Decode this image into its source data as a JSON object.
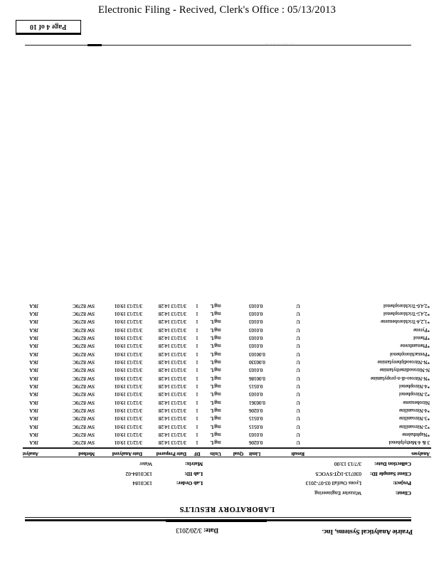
{
  "filing_header": "Electronic Filing - Recived, Clerk's Office :  05/13/2013",
  "page_stamp": "Page 4 of 10",
  "document": {
    "lab_name": "Prairie Analytical Systems, Inc.",
    "date_label": "Date:",
    "date_value": "3/20/2013",
    "title": "LABORATORY RESULTS",
    "info": {
      "client_label": "Client:",
      "client": "Winzeler Engineering",
      "project_label": "Project:",
      "project": "Lyons Outfall 03-07-2013",
      "sample_id_label": "Client Sample ID:",
      "sample_id": "030713-1QT-SVOCS",
      "collection_label": "Collection Date:",
      "collection": "3/7/13 13:00",
      "lab_order_label": "Lab Order:",
      "lab_order": "13C0184",
      "lab_id_label": "Lab ID:",
      "lab_id": "13C0184-02",
      "matrix_label": "Matrix:",
      "matrix": "Water"
    },
    "table": {
      "headers": [
        "Analyses",
        "Result",
        "Limit",
        "Qual",
        "Units",
        "DF",
        "Date Prepared",
        "Date Analyzed",
        "Method",
        "Analyst"
      ],
      "rows": [
        [
          "3 & 4-Methylphenol",
          "U",
          "0.0206",
          "",
          "mg/L",
          "1",
          "3/12/13 14:28",
          "3/12/13 19:01",
          "SW 8270C",
          "JKA"
        ],
        [
          "*Naphthalene",
          "U",
          "0.0103",
          "",
          "mg/L",
          "1",
          "3/12/13 14:28",
          "3/12/13 19:01",
          "SW 8270C",
          "JKA"
        ],
        [
          "*2-Nitroaniline",
          "U",
          "0.0515",
          "",
          "mg/L",
          "1",
          "3/12/13 14:28",
          "3/12/13 19:01",
          "SW 8270C",
          "JKA"
        ],
        [
          "*3-Nitroaniline",
          "U",
          "0.0515",
          "",
          "mg/L",
          "1",
          "3/12/13 14:28",
          "3/12/13 19:01",
          "SW 8270C",
          "JKA"
        ],
        [
          "*4-Nitroaniline",
          "U",
          "0.0206",
          "",
          "mg/L",
          "1",
          "3/12/13 14:28",
          "3/12/13 19:01",
          "SW 8270C",
          "JKA"
        ],
        [
          "Nitrobenzene",
          "U",
          "0.00361",
          "",
          "mg/L",
          "1",
          "3/12/13 14:28",
          "3/12/13 19:01",
          "SW 8270C",
          "JKA"
        ],
        [
          "*2-Nitrophenol",
          "U",
          "0.0103",
          "",
          "mg/L",
          "1",
          "3/12/13 14:28",
          "3/12/13 19:01",
          "SW 8270C",
          "JKA"
        ],
        [
          "*4-Nitrophenol",
          "U",
          "0.0515",
          "",
          "mg/L",
          "1",
          "3/12/13 14:28",
          "3/12/13 19:01",
          "SW 8270C",
          "JKA"
        ],
        [
          "*N-Nitroso-di-n-propylamine",
          "U",
          "0.00186",
          "",
          "mg/L",
          "1",
          "3/12/13 14:28",
          "3/12/13 19:01",
          "SW 8270C",
          "JKA"
        ],
        [
          "N-Nitrosodimethylamine",
          "U",
          "0.0103",
          "",
          "mg/L",
          "1",
          "3/12/13 14:28",
          "3/12/13 19:01",
          "SW 8270C",
          "JKA"
        ],
        [
          "*N-Nitrosodiphenylamine",
          "U",
          "0.00330",
          "",
          "mg/L",
          "1",
          "3/12/13 14:28",
          "3/12/13 19:01",
          "SW 8270C",
          "JKA"
        ],
        [
          "*Pentachlorophenol",
          "U",
          "0.00103",
          "",
          "mg/L",
          "1",
          "3/12/13 14:28",
          "3/12/13 19:01",
          "SW 8270C",
          "JKA"
        ],
        [
          "*Phenanthrene",
          "U",
          "0.0103",
          "",
          "mg/L",
          "1",
          "3/12/13 14:28",
          "3/12/13 19:01",
          "SW 8270C",
          "JKA"
        ],
        [
          "*Phenol",
          "U",
          "0.0103",
          "",
          "mg/L",
          "1",
          "3/12/13 14:28",
          "3/12/13 19:01",
          "SW 8270C",
          "JKA"
        ],
        [
          "*Pyrene",
          "U",
          "0.0103",
          "",
          "mg/L",
          "1",
          "3/12/13 14:28",
          "3/12/13 19:01",
          "SW 8270C",
          "JKA"
        ],
        [
          "*1,2,4-Trichlorobenzene",
          "U",
          "0.0103",
          "",
          "mg/L",
          "1",
          "3/12/13 14:28",
          "3/12/13 19:01",
          "SW 8270C",
          "JKA"
        ],
        [
          "*2,4,5-Trichlorophenol",
          "U",
          "0.0103",
          "",
          "mg/L",
          "1",
          "3/12/13 14:28",
          "3/12/13 19:01",
          "SW 8270C",
          "JKA"
        ],
        [
          "*2,4,6-Trichlorophenol",
          "U",
          "0.0103",
          "",
          "mg/L",
          "1",
          "3/12/13 14:28",
          "3/12/13 19:01",
          "SW 8270C",
          "JKA"
        ]
      ]
    },
    "footer_marks": "·· ···· · ··· ··"
  }
}
